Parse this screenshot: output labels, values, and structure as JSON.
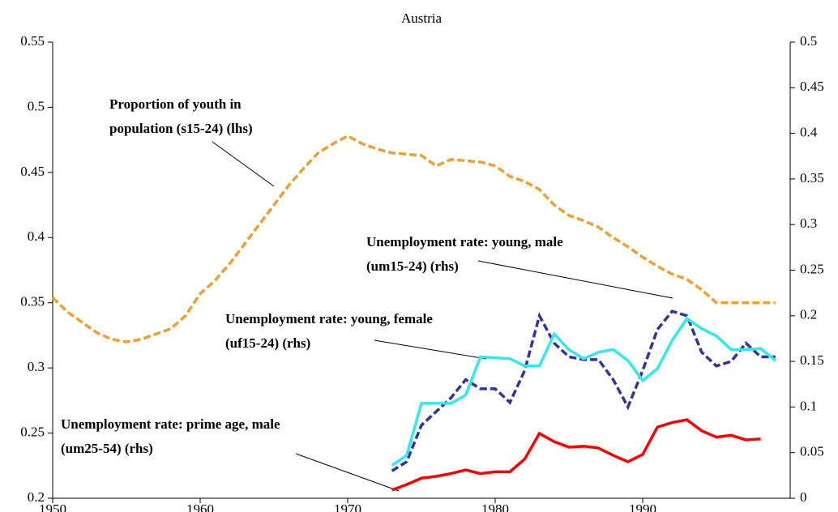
{
  "chart_data": {
    "type": "line",
    "title": "Austria",
    "xlim": [
      1950,
      2000
    ],
    "xticks": [
      1950,
      1960,
      1970,
      1980,
      1990
    ],
    "ylim": [
      0.2,
      0.55
    ],
    "yticks": [
      0.2,
      0.25,
      0.3,
      0.35,
      0.4,
      0.45,
      0.5,
      0.55
    ],
    "y2lim": [
      0,
      0.5
    ],
    "y2ticks": [
      0,
      0.05,
      0.1,
      0.15,
      0.2,
      0.25,
      0.3,
      0.35,
      0.4,
      0.45,
      0.5
    ],
    "annotations": [
      [
        "Proportion of youth in",
        "population (s15-24) (lhs)"
      ],
      [
        "Unemployment rate: young, male",
        "(um15-24) (rhs)"
      ],
      [
        "Unemployment rate: young, female",
        "(uf15-24) (rhs)"
      ],
      [
        "Unemployment rate: prime age, male",
        "(um25-54) (rhs)"
      ]
    ],
    "series": [
      {
        "color": "#f0a030",
        "dashed": true,
        "axis": "y",
        "x": [
          1950,
          1951,
          1952,
          1953,
          1954,
          1955,
          1956,
          1957,
          1958,
          1959,
          1960,
          1961,
          1962,
          1963,
          1964,
          1965,
          1966,
          1967,
          1968,
          1969,
          1970,
          1971,
          1972,
          1973,
          1974,
          1975,
          1976,
          1977,
          1978,
          1979,
          1980,
          1981,
          1982,
          1983,
          1984,
          1985,
          1986,
          1987,
          1988,
          1989,
          1990,
          1991,
          1992,
          1993,
          1994,
          1995,
          1996,
          1997,
          1998,
          1999
        ],
        "values": [
          0.354,
          0.343,
          0.335,
          0.327,
          0.322,
          0.32,
          0.322,
          0.326,
          0.33,
          0.34,
          0.357,
          0.367,
          0.38,
          0.395,
          0.41,
          0.425,
          0.44,
          0.453,
          0.465,
          0.472,
          0.478,
          0.472,
          0.468,
          0.465,
          0.464,
          0.463,
          0.455,
          0.46,
          0.459,
          0.458,
          0.455,
          0.447,
          0.443,
          0.437,
          0.425,
          0.417,
          0.413,
          0.408,
          0.4,
          0.393,
          0.385,
          0.378,
          0.372,
          0.368,
          0.36,
          0.35,
          0.35,
          0.35,
          0.35,
          0.35
        ]
      },
      {
        "color": "#333399",
        "dashed": true,
        "axis": "y2",
        "x": [
          1973,
          1974,
          1975,
          1976,
          1977,
          1978,
          1979,
          1980,
          1981,
          1982,
          1983,
          1984,
          1985,
          1986,
          1987,
          1988,
          1989,
          1990,
          1991,
          1992,
          1993,
          1994,
          1995,
          1996,
          1997,
          1998,
          1999
        ],
        "values": [
          0.03,
          0.04,
          0.08,
          0.095,
          0.11,
          0.13,
          0.12,
          0.12,
          0.105,
          0.14,
          0.2,
          0.17,
          0.155,
          0.152,
          0.152,
          0.13,
          0.1,
          0.14,
          0.185,
          0.205,
          0.2,
          0.16,
          0.145,
          0.15,
          0.17,
          0.155,
          0.155
        ]
      },
      {
        "color": "#33e8f0",
        "dashed": false,
        "axis": "y2",
        "x": [
          1973,
          1974,
          1975,
          1976,
          1977,
          1978,
          1979,
          1980,
          1981,
          1982,
          1983,
          1984,
          1985,
          1986,
          1987,
          1988,
          1989,
          1990,
          1991,
          1992,
          1993,
          1994,
          1995,
          1996,
          1997,
          1998,
          1999
        ],
        "values": [
          0.036,
          0.047,
          0.104,
          0.104,
          0.104,
          0.113,
          0.155,
          0.154,
          0.153,
          0.145,
          0.145,
          0.18,
          0.163,
          0.153,
          0.16,
          0.163,
          0.151,
          0.129,
          0.142,
          0.173,
          0.197,
          0.186,
          0.178,
          0.163,
          0.163,
          0.164,
          0.151
        ]
      },
      {
        "color": "#ff0000",
        "dashed": false,
        "axis": "y2",
        "x": [
          1973,
          1974,
          1975,
          1976,
          1977,
          1978,
          1979,
          1980,
          1981,
          1982,
          1983,
          1984,
          1985,
          1986,
          1987,
          1988,
          1989,
          1990,
          1991,
          1992,
          1993,
          1994,
          1995,
          1996,
          1997,
          1998
        ],
        "values": [
          0.009,
          0.015,
          0.022,
          0.024,
          0.027,
          0.031,
          0.027,
          0.029,
          0.029,
          0.043,
          0.071,
          0.062,
          0.056,
          0.057,
          0.055,
          0.047,
          0.04,
          0.048,
          0.078,
          0.083,
          0.086,
          0.074,
          0.067,
          0.069,
          0.064,
          0.065
        ]
      }
    ]
  }
}
